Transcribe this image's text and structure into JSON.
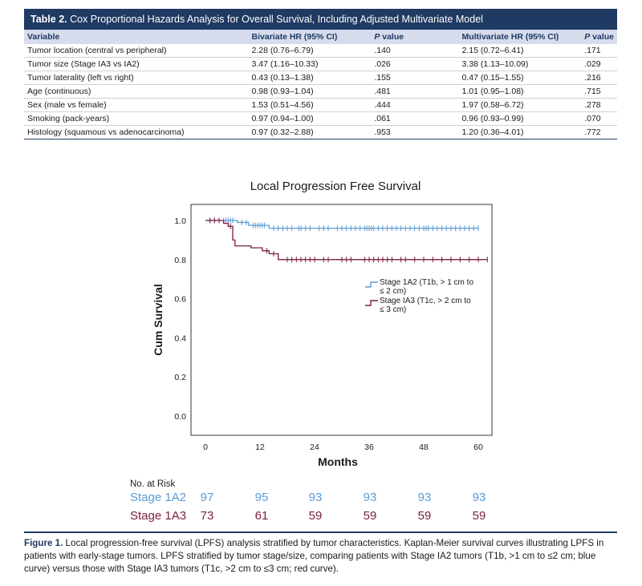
{
  "table": {
    "label": "Table 2.",
    "title": "Cox Proportional Hazards Analysis for Overall Survival, Including Adjusted Multivariate Model",
    "headers": {
      "variable": "Variable",
      "bivariate": "Bivariate HR (95% CI)",
      "p_prefix": "P",
      "p_suffix": " value",
      "multivariate": "Multivariate HR (95% CI)"
    },
    "rows": [
      {
        "variable": "Tumor location (central vs peripheral)",
        "bhr": "2.28 (0.76–6.79)",
        "bp": ".140",
        "mhr": "2.15 (0.72–6.41)",
        "mp": ".171"
      },
      {
        "variable": "Tumor size (Stage IA3 vs IA2)",
        "bhr": "3.47 (1.16–10.33)",
        "bp": ".026",
        "mhr": "3.38 (1.13–10.09)",
        "mp": ".029"
      },
      {
        "variable": "Tumor laterality (left vs right)",
        "bhr": "0.43 (0.13–1.38)",
        "bp": ".155",
        "mhr": "0.47 (0.15–1.55)",
        "mp": ".216"
      },
      {
        "variable": "Age (continuous)",
        "bhr": "0.98 (0.93–1.04)",
        "bp": ".481",
        "mhr": "1.01 (0.95–1.08)",
        "mp": ".715"
      },
      {
        "variable": "Sex (male vs female)",
        "bhr": "1.53 (0.51–4.56)",
        "bp": ".444",
        "mhr": "1.97 (0.58–6.72)",
        "mp": ".278"
      },
      {
        "variable": "Smoking (pack-years)",
        "bhr": "0.97 (0.94–1.00)",
        "bp": ".061",
        "mhr": "0.96 (0.93–0.99)",
        "mp": ".070"
      },
      {
        "variable": "Histology (squamous vs adenocarcinoma)",
        "bhr": "0.97 (0.32–2.88)",
        "bp": ".953",
        "mhr": "1.20 (0.36–4.01)",
        "mp": ".772"
      }
    ]
  },
  "chart_data": {
    "type": "line",
    "title": "Local Progression Free Survival",
    "xlabel": "Months",
    "ylabel": "Cum Survival",
    "xlim": [
      -3,
      63
    ],
    "ylim": [
      0,
      1.0
    ],
    "xticks": [
      "0",
      "12",
      "24",
      "36",
      "48",
      "60"
    ],
    "yticks": [
      "0.0",
      "0.2",
      "0.4",
      "0.6",
      "0.8",
      "1.0"
    ],
    "legend_position": "right",
    "series": [
      {
        "name": "Stage 1A2 (T1b, > 1 cm to ≤ 2 cm)",
        "color": "#5b9bd5",
        "step_x": [
          0,
          7,
          9.5,
          14,
          60
        ],
        "step_y": [
          1.0,
          0.99,
          0.975,
          0.96,
          0.96
        ],
        "censored_x": [
          1,
          2,
          3,
          4,
          4.5,
          5,
          5.5,
          6,
          8,
          9,
          10.5,
          11,
          11.5,
          12,
          12.5,
          13,
          15,
          16,
          17,
          18,
          19,
          20.5,
          21,
          22,
          23,
          25,
          26,
          27,
          29,
          30,
          31,
          32,
          33,
          34,
          35,
          35.5,
          36,
          36.5,
          37,
          38,
          39,
          40,
          41,
          42,
          43,
          44,
          45,
          46,
          47,
          48,
          48.5,
          49,
          50,
          51,
          52,
          53,
          54,
          55,
          56,
          57,
          58,
          59,
          60
        ]
      },
      {
        "name": "Stage IA3 (T1c, > 2 cm to ≤ 3 cm)",
        "color": "#7a1f3d",
        "step_x": [
          0,
          4,
          5,
          6,
          6.5,
          10,
          12.5,
          14,
          16,
          62
        ],
        "step_y": [
          1.0,
          0.985,
          0.97,
          0.9,
          0.87,
          0.86,
          0.845,
          0.83,
          0.8,
          0.8
        ],
        "censored_x": [
          1,
          2,
          3,
          5.5,
          13.5,
          15,
          18,
          19,
          20,
          21,
          22,
          23,
          24,
          26,
          27,
          30,
          31,
          32,
          35,
          36,
          37,
          38,
          39,
          40,
          41,
          43,
          44,
          46,
          48,
          50,
          52,
          54,
          56,
          58,
          60,
          62
        ]
      }
    ]
  },
  "risk_table": {
    "title": "No. at Risk",
    "rows": [
      {
        "label": "Stage 1A2",
        "values": [
          "97",
          "95",
          "93",
          "93",
          "93",
          "93"
        ]
      },
      {
        "label": "Stage 1A3",
        "values": [
          "73",
          "61",
          "59",
          "59",
          "59",
          "59"
        ]
      }
    ]
  },
  "caption": {
    "label": "Figure 1.",
    "text": " Local progression-free survival (LPFS) analysis stratified by tumor characteristics. Kaplan-Meier survival curves illustrating LPFS in patients with early-stage tumors. LPFS stratified by tumor stage/size, comparing patients with Stage IA2 tumors (T1b, >1 cm to ≤2 cm; blue curve) versus those with Stage IA3 tumors (T1c, >2 cm to ≤3 cm; red curve)."
  }
}
